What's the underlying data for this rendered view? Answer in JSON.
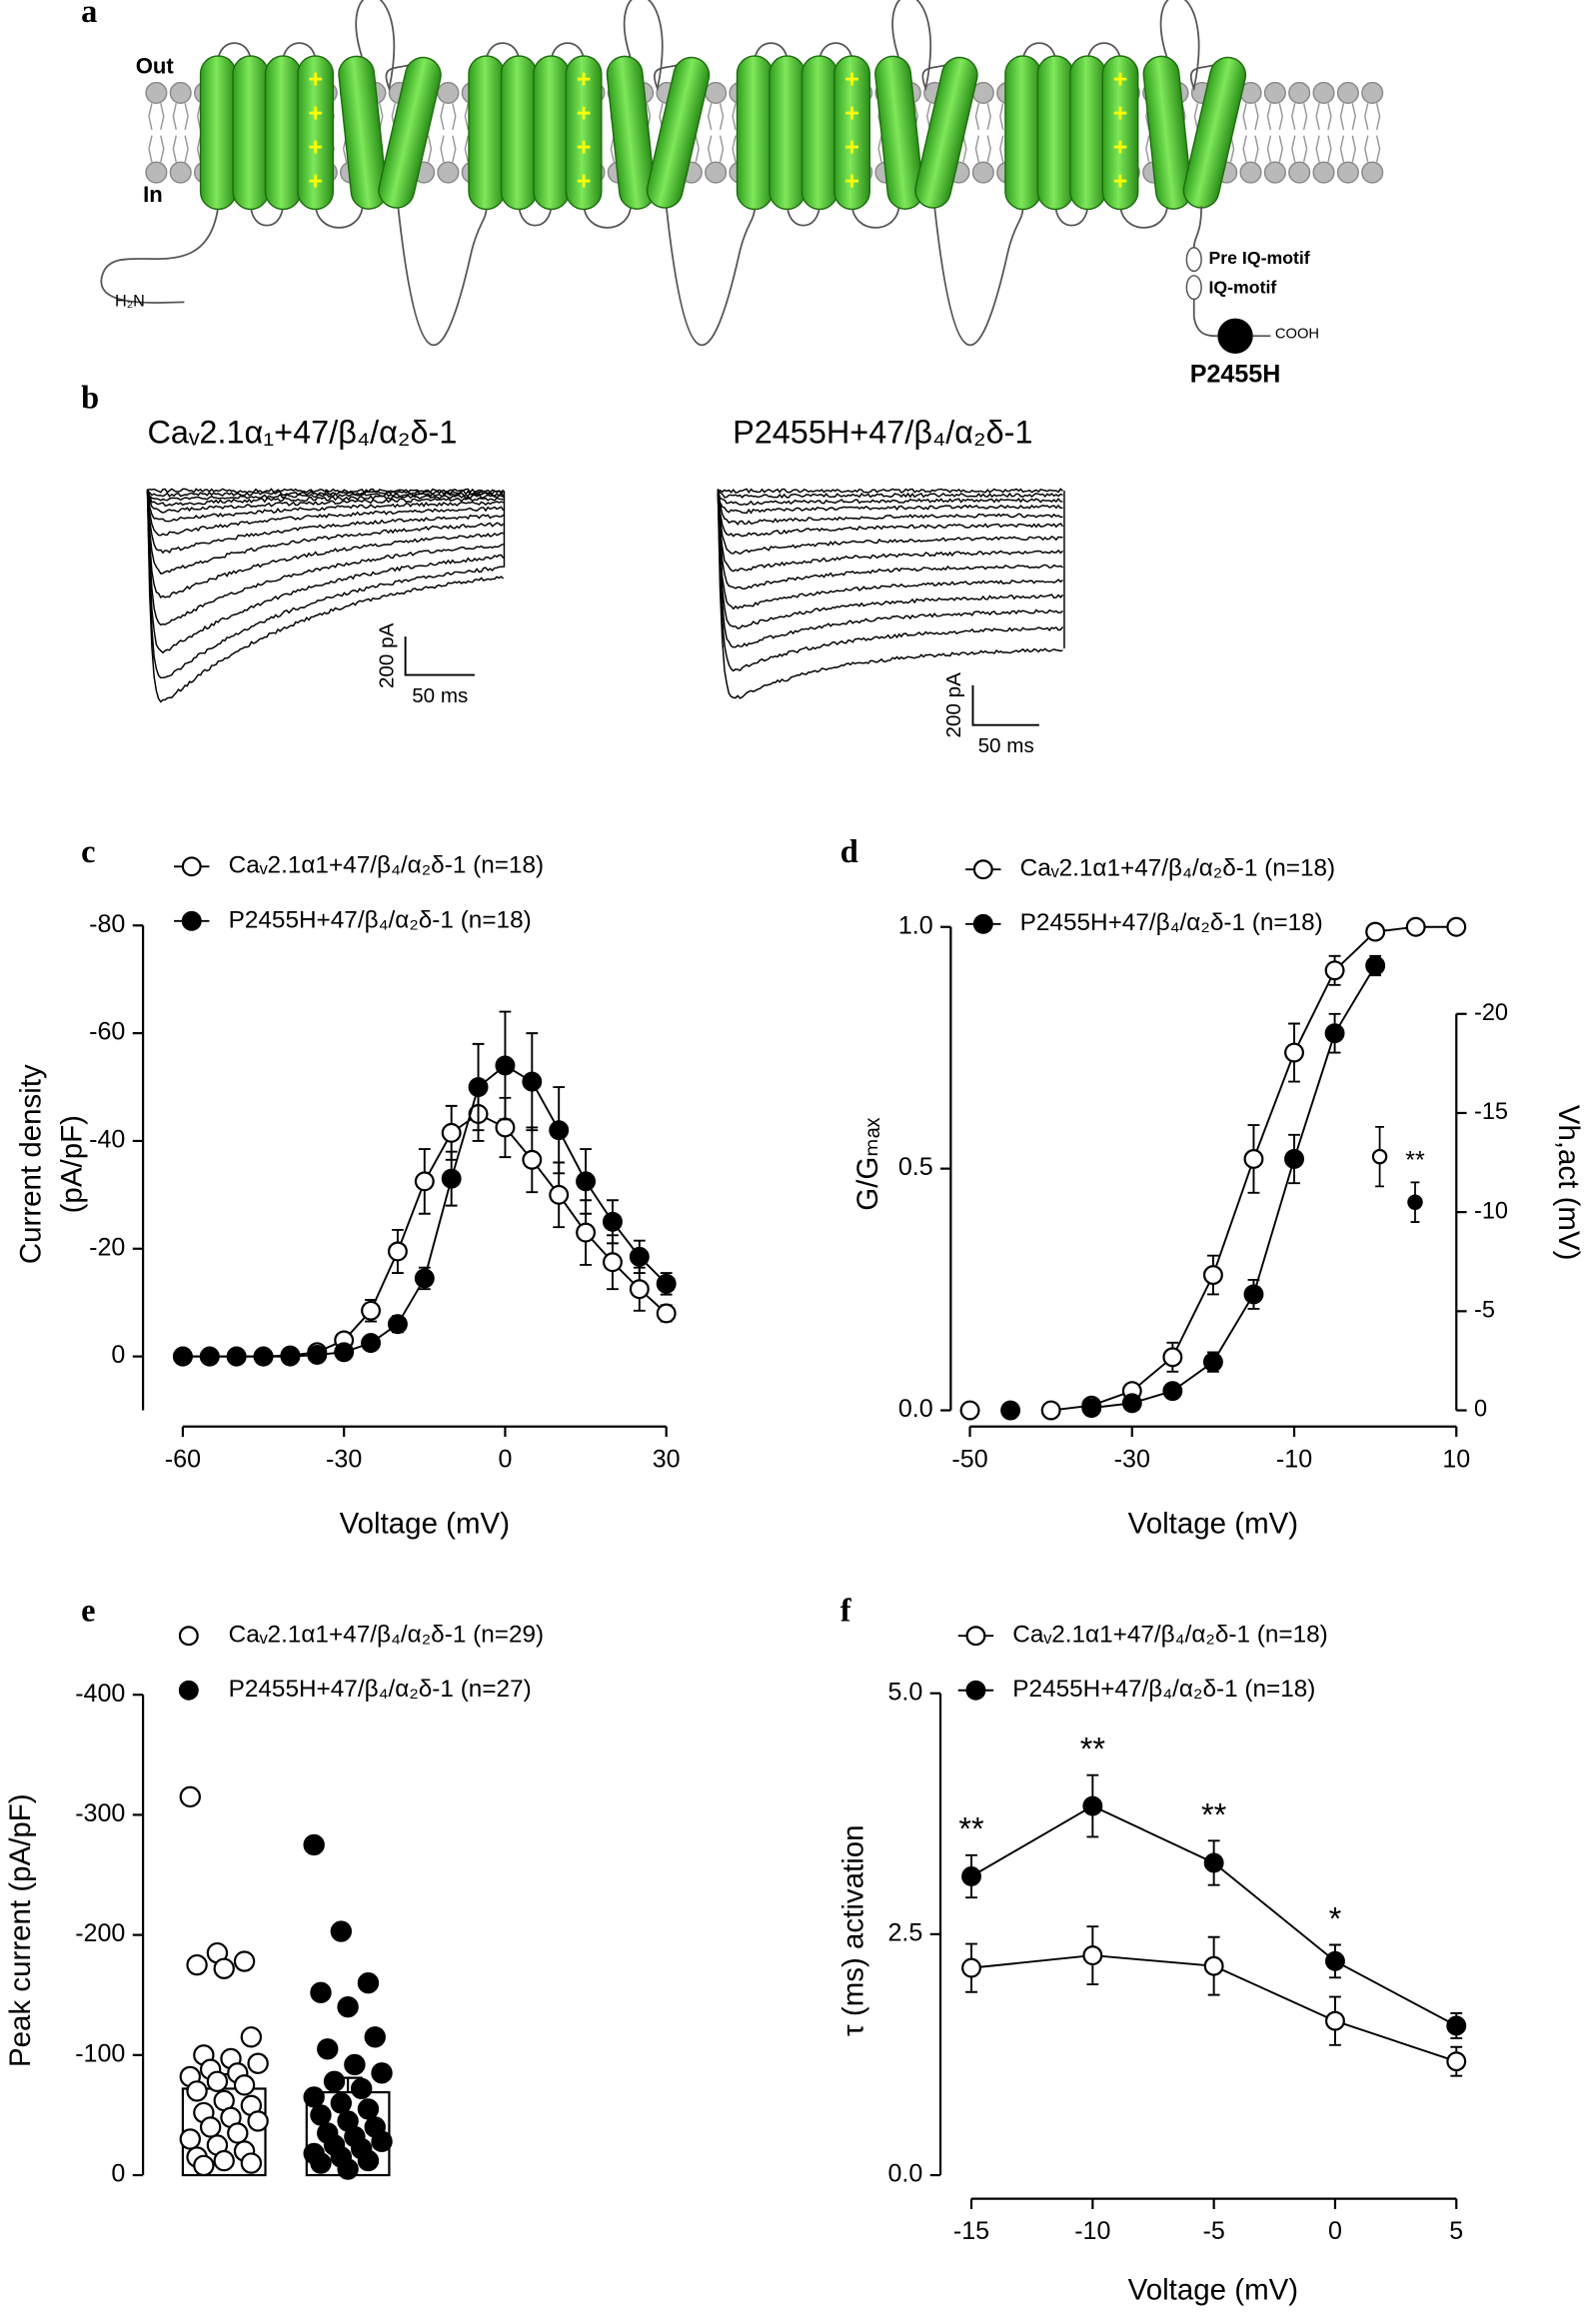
{
  "panel_labels": [
    "a",
    "b",
    "c",
    "d",
    "e",
    "f"
  ],
  "panel_a": {
    "out": "Out",
    "in": "In",
    "n_terminus": "H₂N",
    "plus": "+",
    "pre_iq": "Pre IQ-motif",
    "iq": "IQ-motif",
    "c_terminus": "COOH",
    "mutation": "P2455H"
  },
  "panel_b": {
    "recordings": [
      {
        "title": "Caᵥ2.1α₁+47/β₄/α₂δ-1",
        "scale_current": "200 pA",
        "scale_time": "50 ms"
      },
      {
        "title": "P2455H+47/β₄/α₂δ-1",
        "scale_current": "200 pA",
        "scale_time": "50 ms"
      }
    ]
  },
  "chart_data": [
    {
      "type": "line",
      "xlabel": "Voltage (mV)",
      "ylabel": [
        "Current density",
        "(pA/pF)"
      ],
      "x": [
        -60,
        -55,
        -50,
        -45,
        -40,
        -35,
        -30,
        -25,
        -20,
        -15,
        -10,
        -5,
        0,
        5,
        10,
        15,
        20,
        25,
        30
      ],
      "series": [
        {
          "name": "Caᵥ2.1α1+47/β₄/α₂δ-1 (n=18)",
          "color": "#000000",
          "marker": "open",
          "values": [
            0,
            0,
            0,
            0,
            -0.2,
            -0.8,
            -3,
            -8.5,
            -19.5,
            -32.5,
            -41.5,
            -45,
            -42.5,
            -36.5,
            -30,
            -23,
            -17.5,
            -12.5,
            -8
          ],
          "errors": [
            0,
            0,
            0,
            0,
            0,
            0.3,
            1,
            2,
            4,
            6,
            5,
            5,
            5.5,
            6,
            6,
            6,
            5,
            4,
            1.5
          ]
        },
        {
          "name": "P2455H+47/β₄/α₂δ-1 (n=18)",
          "color": "#000000",
          "marker": "filled",
          "values": [
            0,
            0,
            0,
            0,
            0,
            -0.3,
            -0.8,
            -2.5,
            -6,
            -14.5,
            -33,
            -50,
            -54,
            -51,
            -42,
            -32.5,
            -25,
            -18.5,
            -13.5
          ],
          "errors": [
            0,
            0,
            0,
            0,
            0,
            0,
            0.3,
            0.8,
            1.5,
            2,
            5,
            8,
            10,
            9,
            8,
            6,
            4,
            3,
            2
          ]
        }
      ],
      "xlim": [
        -60,
        30
      ],
      "xticks": [
        -60,
        -30,
        0,
        30
      ],
      "ylim": [
        10,
        -80
      ],
      "yticks": [
        0,
        -20,
        -40,
        -60,
        -80
      ]
    },
    {
      "type": "line",
      "xlabel": "Voltage (mV)",
      "ylabel": [
        "G/Gₘₐₓ"
      ],
      "y2label": "Vh,act (mV)",
      "x": [
        -50,
        -45,
        -40,
        -35,
        -30,
        -25,
        -20,
        -15,
        -10,
        -5,
        0,
        5,
        10
      ],
      "series": [
        {
          "name": "Caᵥ2.1α1+47/β₄/α₂δ-1 (n=18)",
          "color": "#000000",
          "marker": "open",
          "values": [
            0,
            null,
            0,
            0.01,
            0.04,
            0.11,
            0.28,
            0.52,
            0.74,
            0.91,
            0.99,
            1.0,
            1.0
          ],
          "errors": [
            0,
            null,
            0,
            0.005,
            0.01,
            0.03,
            0.04,
            0.07,
            0.06,
            0.03,
            0.01,
            0.01,
            0.005
          ]
        },
        {
          "name": "P2455H+47/β₄/α₂δ-1 (n=18)",
          "color": "#000000",
          "marker": "filled",
          "values": [
            null,
            0,
            null,
            0.005,
            0.015,
            0.04,
            0.1,
            0.24,
            0.52,
            0.78,
            0.92,
            null,
            null
          ],
          "errors": [
            null,
            0,
            null,
            0.005,
            0.005,
            0.01,
            0.02,
            0.03,
            0.05,
            0.04,
            0.02,
            null,
            null
          ]
        }
      ],
      "vh_act": {
        "values": [
          -12.8,
          -10.5
        ],
        "errors": [
          1.5,
          1.0
        ],
        "annotation": "**"
      },
      "xlim": [
        -50,
        10
      ],
      "xticks": [
        -50,
        -30,
        -10,
        10
      ],
      "ylim": [
        0,
        1
      ],
      "yticks": [
        {
          "value": 0,
          "label": "0.0"
        },
        {
          "value": 0.5,
          "label": "0.5"
        },
        {
          "value": 1,
          "label": "1.0"
        }
      ],
      "y2lim": [
        0,
        -20
      ],
      "y2ticks": [
        0,
        -5,
        -10,
        -15,
        -20
      ]
    },
    {
      "type": "bar",
      "ylabel": [
        "Peak current (pA/pF)"
      ],
      "series": [
        {
          "name": "Caᵥ2.1α1+47/β₄/α₂δ-1 (n=29)",
          "color": "#000000",
          "marker": "open",
          "mean": -72,
          "sem": 12,
          "values": [
            -315,
            -185,
            -178,
            -175,
            -172,
            -115,
            -100,
            -97,
            -93,
            -88,
            -85,
            -82,
            -78,
            -75,
            -70,
            -62,
            -58,
            -52,
            -48,
            -45,
            -40,
            -35,
            -30,
            -25,
            -20,
            -15,
            -12,
            -10,
            -8
          ]
        },
        {
          "name": "P2455H+47/β₄/α₂δ-1 (n=27)",
          "color": "#000000",
          "marker": "filled",
          "mean": -69,
          "sem": 12,
          "values": [
            -275,
            -203,
            -160,
            -152,
            -140,
            -115,
            -105,
            -92,
            -85,
            -78,
            -72,
            -65,
            -60,
            -55,
            -50,
            -45,
            -40,
            -35,
            -32,
            -28,
            -25,
            -22,
            -18,
            -15,
            -12,
            -10,
            -5
          ]
        }
      ],
      "ylim": [
        0,
        -400
      ],
      "yticks": [
        0,
        -100,
        -200,
        -300,
        -400
      ]
    },
    {
      "type": "line",
      "xlabel": "Voltage (mV)",
      "ylabel": [
        "τ (ms) activation"
      ],
      "x": [
        -15,
        -10,
        -5,
        0,
        5
      ],
      "series": [
        {
          "name": "Caᵥ2.1α1+47/β₄/α₂δ-1 (n=18)",
          "color": "#000000",
          "marker": "open",
          "values": [
            2.15,
            2.28,
            2.17,
            1.6,
            1.18
          ],
          "errors": [
            0.25,
            0.3,
            0.3,
            0.25,
            0.15
          ]
        },
        {
          "name": "P2455H+47/β₄/α₂δ-1 (n=18)",
          "color": "#000000",
          "marker": "filled",
          "values": [
            3.1,
            3.83,
            3.24,
            2.22,
            1.55
          ],
          "errors": [
            0.22,
            0.32,
            0.23,
            0.17,
            0.13
          ],
          "annotations": [
            "**",
            "**",
            "**",
            "*",
            null
          ]
        }
      ],
      "xlim": [
        -15,
        5
      ],
      "xticks": [
        -15,
        -10,
        -5,
        0,
        5
      ],
      "ylim": [
        0,
        5
      ],
      "yticks": [
        {
          "value": 0,
          "label": "0.0"
        },
        {
          "value": 2.5,
          "label": "2.5"
        },
        {
          "value": 5,
          "label": "5.0"
        }
      ]
    }
  ]
}
